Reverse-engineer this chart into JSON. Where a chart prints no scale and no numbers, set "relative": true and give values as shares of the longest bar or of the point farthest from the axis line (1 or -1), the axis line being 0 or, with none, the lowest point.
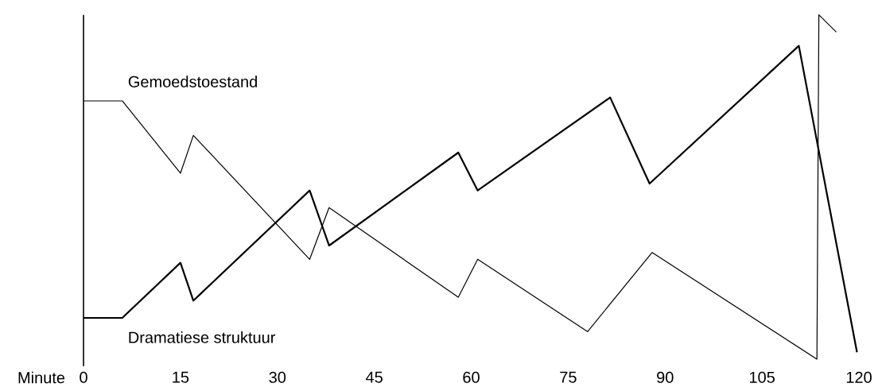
{
  "chart_data": {
    "type": "line",
    "relative": true,
    "xlabel": "Minute",
    "xlim": [
      0,
      120
    ],
    "xticks": [
      0,
      15,
      30,
      45,
      60,
      75,
      90,
      105,
      120
    ],
    "series": [
      {
        "name": "Gemoedstoestand",
        "color": "#000000",
        "x": [
          0,
          6,
          15,
          17,
          35,
          38,
          58,
          61,
          78,
          88,
          113.5,
          113.8,
          116.5
        ],
        "values": [
          0.75,
          0.75,
          0.54,
          0.65,
          0.29,
          0.44,
          0.18,
          0.29,
          0.08,
          0.31,
          0,
          1,
          0.95
        ]
      },
      {
        "name": "Dramatiese struktuur",
        "color": "#000000",
        "x": [
          0,
          6,
          15,
          17,
          35,
          38,
          58,
          61,
          81.5,
          87.6,
          110.7,
          119.7
        ],
        "values": [
          0.12,
          0.12,
          0.28,
          0.17,
          0.49,
          0.33,
          0.6,
          0.49,
          0.76,
          0.51,
          0.91,
          0.02
        ]
      }
    ]
  }
}
